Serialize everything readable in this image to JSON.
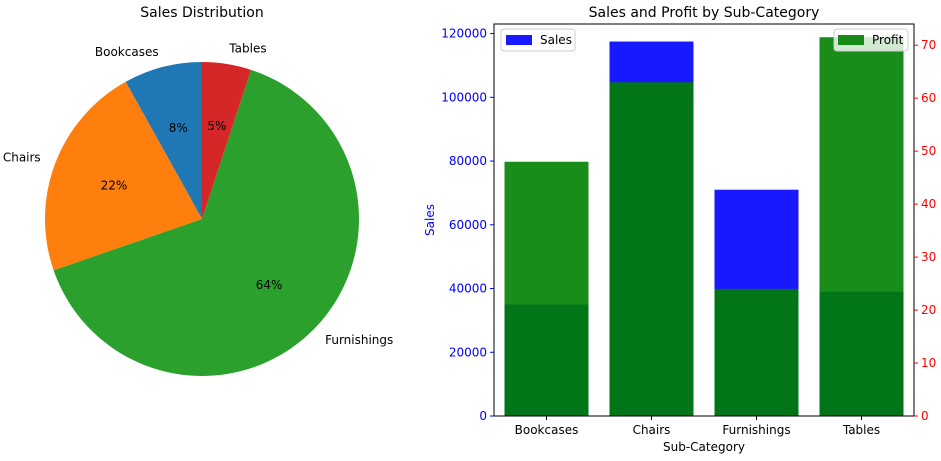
{
  "chart_data": [
    {
      "type": "pie",
      "title": "Sales Distribution",
      "labels": [
        "Bookcases",
        "Chairs",
        "Furnishings",
        "Tables"
      ],
      "values": [
        8,
        22,
        64,
        5
      ],
      "pct_labels": [
        "8%",
        "22%",
        "64%",
        "5%"
      ],
      "colors": [
        "#1f77b4",
        "#ff7f0e",
        "#2ca02c",
        "#d62728"
      ]
    },
    {
      "type": "bar",
      "title": "Sales and Profit by Sub-Category",
      "xlabel": "Sub-Category",
      "ylabel": "Sales",
      "categories": [
        "Bookcases",
        "Chairs",
        "Furnishings",
        "Tables"
      ],
      "ylim": [
        0,
        123000
      ],
      "y2lim": [
        0,
        74
      ],
      "yticks": [
        0,
        20000,
        40000,
        60000,
        80000,
        100000,
        120000
      ],
      "y2ticks": [
        0,
        10,
        20,
        30,
        40,
        50,
        60,
        70
      ],
      "series": [
        {
          "name": "Sales",
          "axis": "left",
          "color": "#0000ff",
          "alpha": 0.9,
          "values": [
            35000,
            117500,
            71000,
            39000
          ]
        },
        {
          "name": "Profit",
          "axis": "right",
          "color": "#008000",
          "alpha": 0.9,
          "values": [
            48,
            63,
            24,
            71.5
          ]
        }
      ],
      "legend": [
        "upper left",
        "upper right"
      ],
      "left_axis_color": "#0000ff",
      "right_axis_color": "#ff0000",
      "grid": false
    }
  ]
}
